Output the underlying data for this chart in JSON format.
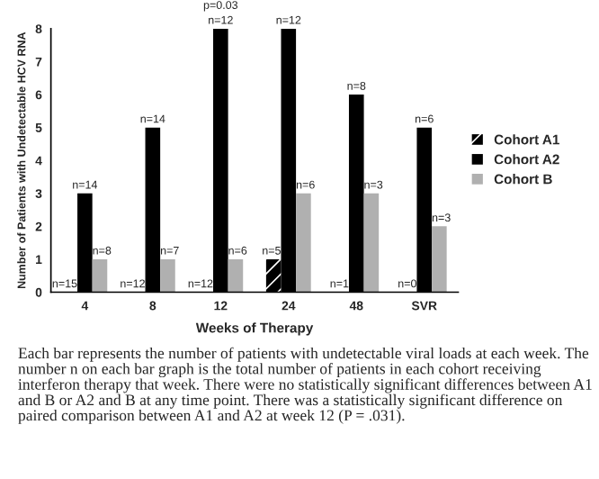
{
  "chart_data": {
    "type": "bar",
    "xlabel": "Weeks of Therapy",
    "ylabel": "Number of Patients with Undetectable HCV RNA",
    "categories": [
      "4",
      "8",
      "12",
      "24",
      "48",
      "SVR"
    ],
    "series": [
      {
        "name": "Cohort A1",
        "color": "#000000",
        "values": [
          0,
          0,
          0,
          1,
          0,
          0
        ]
      },
      {
        "name": "Cohort A2",
        "color": "#000000",
        "values": [
          3,
          5,
          8,
          8,
          6,
          5
        ]
      },
      {
        "name": "Cohort B",
        "color": "#b0b0b0",
        "values": [
          1,
          1,
          1,
          3,
          3,
          2
        ]
      }
    ],
    "ylim": [
      0,
      8
    ],
    "yticks": [
      0,
      1,
      2,
      3,
      4,
      5,
      6,
      7,
      8
    ],
    "grid": false,
    "legend": "right",
    "annotations": [
      {
        "text": "n=15",
        "x": "4",
        "y": 0
      },
      {
        "text": "n=14",
        "x": "4",
        "y": 3
      },
      {
        "text": "n=8",
        "x": "4",
        "y": 1
      },
      {
        "text": "n=12",
        "x": "8",
        "y": 0
      },
      {
        "text": "n=14",
        "x": "8",
        "y": 5
      },
      {
        "text": "n=7",
        "x": "8",
        "y": 1
      },
      {
        "text": "n=12",
        "x": "12",
        "y": 0
      },
      {
        "text": "n=12",
        "x": "12",
        "y": 8
      },
      {
        "text": "n=6",
        "x": "12",
        "y": 1
      },
      {
        "text": "n=5",
        "x": "24",
        "y": 1
      },
      {
        "text": "n=12",
        "x": "24",
        "y": 8
      },
      {
        "text": "n=6",
        "x": "24",
        "y": 3
      },
      {
        "text": "n=1",
        "x": "48",
        "y": 0
      },
      {
        "text": "n=8",
        "x": "48",
        "y": 6
      },
      {
        "text": "n=3",
        "x": "48",
        "y": 3
      },
      {
        "text": "n=0",
        "x": "SVR",
        "y": 0
      },
      {
        "text": "n=6",
        "x": "SVR",
        "y": 5
      },
      {
        "text": "n=3",
        "x": "SVR",
        "y": 2
      },
      {
        "text": "p=0.03",
        "x": "12",
        "y": 8
      },
      "Each bar represents the number of patients with undetectable viral loads at each week. The number n on each bar graph is the total number of patients in each cohort receiving interferon therapy that week. There were no statistically significant differences between A1 and B or A2 and B at any time point. There was a statistically significant difference on paired comparison between A1 and A2 at week 12 (P = .031)."
    ]
  }
}
